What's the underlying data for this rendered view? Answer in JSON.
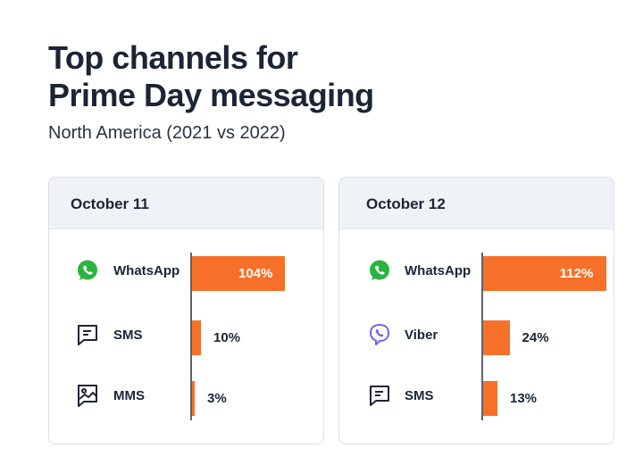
{
  "header": {
    "title_line1": "Top channels for",
    "title_line2": "Prime Day messaging",
    "subtitle": "North America (2021 vs 2022)"
  },
  "colors": {
    "bar": "#f7702a",
    "header_bg": "#eff2f7",
    "text": "#1c2435",
    "viber": "#7360f2",
    "whatsapp": "#29b43f"
  },
  "chart_data": [
    {
      "type": "bar",
      "orientation": "horizontal",
      "title": "October 11",
      "categories": [
        "WhatsApp",
        "SMS",
        "MMS"
      ],
      "icons": [
        "whatsapp-icon",
        "sms-icon",
        "mms-icon"
      ],
      "values": [
        104,
        10,
        3
      ],
      "labels": [
        "104%",
        "10%",
        "3%"
      ]
    },
    {
      "type": "bar",
      "orientation": "horizontal",
      "title": "October 12",
      "categories": [
        "WhatsApp",
        "Viber",
        "SMS"
      ],
      "icons": [
        "whatsapp-icon",
        "viber-icon",
        "sms-icon"
      ],
      "values": [
        112,
        24,
        13
      ],
      "labels": [
        "112%",
        "24%",
        "13%"
      ]
    }
  ]
}
